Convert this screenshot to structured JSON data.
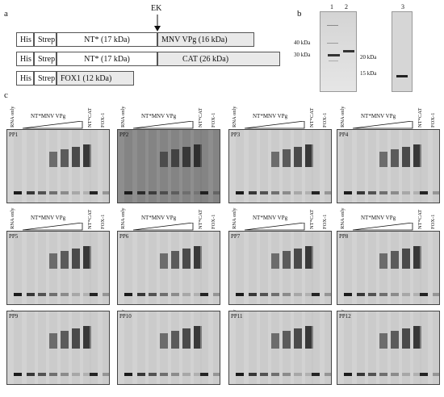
{
  "panel_labels": {
    "a": "a",
    "b": "b",
    "c": "c"
  },
  "constructs": {
    "row1": {
      "his": "His",
      "strep": "Strep",
      "nt": "NT* (17 kDa)",
      "cargo": "MNV VPg (16 kDa)"
    },
    "row2": {
      "his": "His",
      "strep": "Strep",
      "nt": "NT* (17 kDa)",
      "cargo": "CAT (26 kDa)"
    },
    "row3": {
      "his": "His",
      "strep": "Strep",
      "cargo": "FOX1 (12 kDa)"
    },
    "cleavage_site": "EK"
  },
  "gel_b": {
    "lanes": [
      "1",
      "2",
      "3"
    ],
    "markers_left": [
      "40 kDa",
      "30 kDa"
    ],
    "markers_right": [
      "20 kDa",
      "15 kDa"
    ]
  },
  "emsa": {
    "lane_rna": "RNA only",
    "titration": "NT*MNV VPg",
    "lane_cat": "NT*CAT",
    "lane_fox": "FOX-1",
    "panels": [
      "PP1",
      "PP2",
      "PP3",
      "PP4",
      "PP5",
      "PP6",
      "PP7",
      "PP8",
      "PP9",
      "PP10",
      "PP11",
      "PP12"
    ]
  }
}
